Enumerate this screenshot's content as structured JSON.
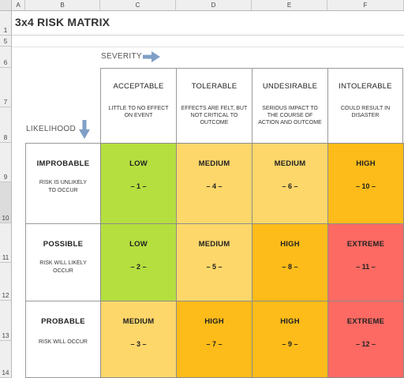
{
  "sheet": {
    "columns": [
      "A",
      "B",
      "C",
      "D",
      "E",
      "F"
    ],
    "rows": [
      "1",
      "5",
      "6",
      "7",
      "8",
      "9",
      "10",
      "11",
      "12",
      "13",
      "14"
    ]
  },
  "title": "3x4 RISK MATRIX",
  "severity_label": "SEVERITY",
  "likelihood_label": "LIKELIHOOD",
  "severity": [
    {
      "name": "ACCEPTABLE",
      "desc": "LITTLE TO NO EFFECT ON EVENT"
    },
    {
      "name": "TOLERABLE",
      "desc": "EFFECTS ARE FELT, BUT NOT CRITICAL TO OUTCOME"
    },
    {
      "name": "UNDESIRABLE",
      "desc": "SERIOUS IMPACT TO THE COURSE OF ACTION AND OUTCOME"
    },
    {
      "name": "INTOLERABLE",
      "desc": "COULD RESULT IN DISASTER"
    }
  ],
  "likelihood": [
    {
      "name": "IMPROBABLE",
      "desc": "RISK IS UNLIKELY TO OCCUR"
    },
    {
      "name": "POSSIBLE",
      "desc": "RISK WILL LIKELY OCCUR"
    },
    {
      "name": "PROBABLE",
      "desc": "RISK WILL OCCUR"
    }
  ],
  "matrix": [
    [
      {
        "level": "LOW",
        "number": "– 1 –",
        "color": "#b5df3f"
      },
      {
        "level": "MEDIUM",
        "number": "– 4 –",
        "color": "#fdd76a"
      },
      {
        "level": "MEDIUM",
        "number": "– 6 –",
        "color": "#fdd76a"
      },
      {
        "level": "HIGH",
        "number": "– 10 –",
        "color": "#fdbc19"
      }
    ],
    [
      {
        "level": "LOW",
        "number": "– 2 –",
        "color": "#b5df3f"
      },
      {
        "level": "MEDIUM",
        "number": "– 5 –",
        "color": "#fdd76a"
      },
      {
        "level": "HIGH",
        "number": "– 8 –",
        "color": "#fdbc19"
      },
      {
        "level": "EXTREME",
        "number": "– 11 –",
        "color": "#fc6a63"
      }
    ],
    [
      {
        "level": "MEDIUM",
        "number": "– 3 –",
        "color": "#fdd76a"
      },
      {
        "level": "HIGH",
        "number": "– 7 –",
        "color": "#fdbc19"
      },
      {
        "level": "HIGH",
        "number": "– 9 –",
        "color": "#fdbc19"
      },
      {
        "level": "EXTREME",
        "number": "– 12 –",
        "color": "#fc6a63"
      }
    ]
  ],
  "colors": {
    "arrow": "#7f9fc6"
  }
}
